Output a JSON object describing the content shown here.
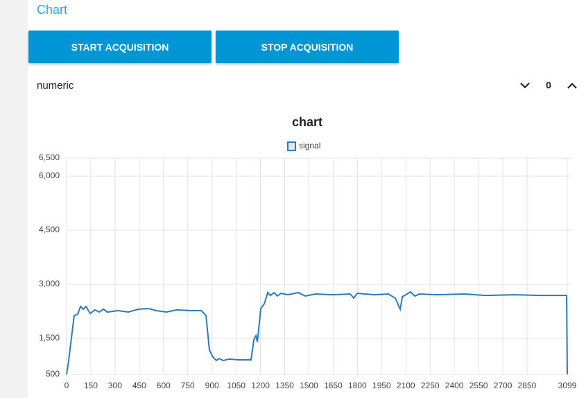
{
  "header": {
    "title": "Chart"
  },
  "buttons": [
    {
      "label": "START ACQUISITION"
    },
    {
      "label": "STOP ACQUISITION"
    }
  ],
  "numeric": {
    "label": "numeric",
    "value": 0
  },
  "chart_data": {
    "type": "line",
    "title": "chart",
    "x": [
      0,
      13,
      47,
      69,
      86,
      103,
      120,
      146,
      176,
      202,
      228,
      253,
      318,
      382,
      446,
      511,
      554,
      618,
      683,
      768,
      833,
      863,
      884,
      906,
      927,
      944,
      970,
      1005,
      1069,
      1142,
      1159,
      1172,
      1181,
      1202,
      1224,
      1245,
      1262,
      1284,
      1305,
      1327,
      1369,
      1434,
      1477,
      1541,
      1649,
      1756,
      1777,
      1799,
      1906,
      1992,
      2035,
      2065,
      2078,
      2099,
      2129,
      2155,
      2185,
      2293,
      2464,
      2593,
      2765,
      2936,
      3095,
      3099
    ],
    "series": [
      {
        "name": "signal",
        "color": "#2b7bb5",
        "values": [
          500,
          885,
          2135,
          2170,
          2385,
          2310,
          2385,
          2190,
          2290,
          2230,
          2310,
          2230,
          2270,
          2230,
          2310,
          2325,
          2270,
          2230,
          2290,
          2270,
          2270,
          2135,
          1175,
          980,
          885,
          940,
          885,
          925,
          905,
          905,
          1460,
          1575,
          1405,
          2325,
          2460,
          2770,
          2690,
          2770,
          2675,
          2750,
          2710,
          2770,
          2675,
          2730,
          2710,
          2730,
          2615,
          2750,
          2710,
          2730,
          2615,
          2310,
          2655,
          2710,
          2790,
          2675,
          2730,
          2710,
          2730,
          2690,
          2710,
          2690,
          2690,
          500
        ]
      }
    ],
    "xlim": [
      0,
      3099
    ],
    "ylim": [
      500,
      6500
    ],
    "xticks": [
      0,
      150,
      300,
      450,
      600,
      750,
      900,
      1050,
      1200,
      1350,
      1500,
      1650,
      1800,
      1950,
      2100,
      2250,
      2400,
      2550,
      2700,
      2850,
      3099
    ],
    "yticks": [
      500,
      {
        "value": 1500,
        "label": "1,500"
      },
      {
        "value": 3000,
        "label": "3,000"
      },
      {
        "value": 4500,
        "label": "4,500"
      },
      {
        "value": 6000,
        "label": "6,000"
      },
      {
        "value": 6500,
        "label": "6,500"
      }
    ],
    "grid": true,
    "legend": "top"
  }
}
